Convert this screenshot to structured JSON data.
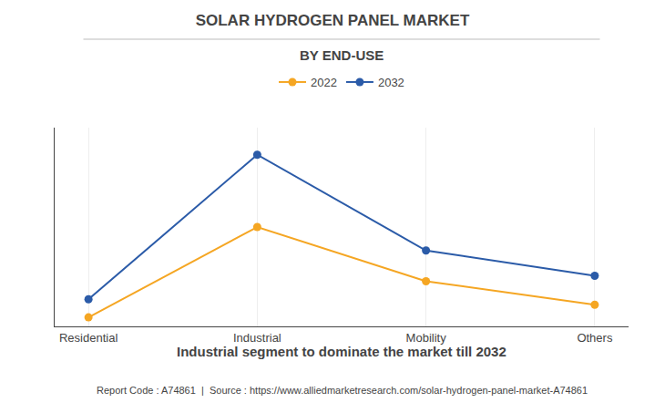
{
  "chart_data": {
    "type": "line",
    "title": "SOLAR HYDROGEN PANEL MARKET",
    "subtitle": "BY END-USE",
    "categories": [
      "Residential",
      "Industrial",
      "Mobility",
      "Others"
    ],
    "series": [
      {
        "name": "2022",
        "color": "#F5A623",
        "values": [
          0.5,
          5.5,
          2.5,
          1.2
        ]
      },
      {
        "name": "2032",
        "color": "#2B5BA8",
        "values": [
          1.5,
          9.5,
          4.2,
          2.8
        ]
      }
    ],
    "ylim": [
      0,
      11
    ],
    "yticks": [],
    "tick_labels": "x",
    "grid": true,
    "legend": "top",
    "marker": "circle",
    "line_style": "solid",
    "annotations": [
      "Industrial segment to dominate the market till 2032",
      "Report Code : A74861  |  Source : https://www.alliedmarketresearch.com/solar-hydrogen-panel-market-A74861"
    ]
  }
}
